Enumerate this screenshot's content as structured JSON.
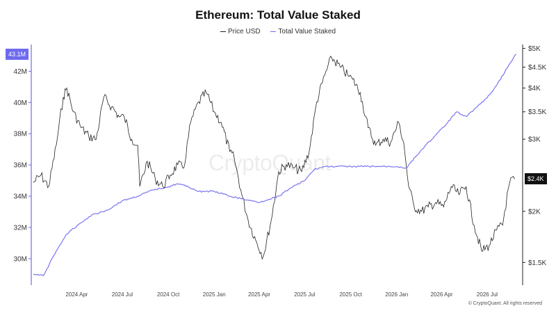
{
  "chart_data": {
    "type": "line",
    "title": "Ethereum: Total Value Staked",
    "legend_position": "top-center",
    "series": [
      {
        "name": "Price USD",
        "axis": "right",
        "color": "#222222",
        "x": [
          "2024-01-05",
          "2024-01-20",
          "2024-02-05",
          "2024-02-20",
          "2024-03-05",
          "2024-03-12",
          "2024-03-25",
          "2024-04-10",
          "2024-04-25",
          "2024-05-10",
          "2024-05-25",
          "2024-06-10",
          "2024-06-25",
          "2024-07-05",
          "2024-07-20",
          "2024-08-01",
          "2024-08-05",
          "2024-08-20",
          "2024-09-05",
          "2024-09-20",
          "2024-10-05",
          "2024-10-20",
          "2024-11-01",
          "2024-11-15",
          "2024-12-01",
          "2024-12-16",
          "2025-01-01",
          "2025-01-15",
          "2025-02-01",
          "2025-02-10",
          "2025-02-25",
          "2025-03-10",
          "2025-03-25",
          "2025-04-09",
          "2025-04-25",
          "2025-05-10",
          "2025-05-25",
          "2025-06-10",
          "2025-06-25",
          "2025-07-10",
          "2025-07-25",
          "2025-08-10",
          "2025-08-24",
          "2025-09-10",
          "2025-09-25",
          "2025-10-05",
          "2025-10-20",
          "2025-11-05",
          "2025-11-20",
          "2025-12-05",
          "2025-12-20",
          "2026-01-05",
          "2026-01-15",
          "2026-01-25",
          "2026-02-05",
          "2026-02-20",
          "2026-03-05",
          "2026-03-20",
          "2026-04-05",
          "2026-04-20",
          "2026-05-05",
          "2026-05-20",
          "2026-06-05",
          "2026-06-20",
          "2026-07-05",
          "2026-07-20",
          "2026-08-01",
          "2026-08-05",
          "2026-08-15",
          "2026-08-25"
        ],
        "values": [
          2350,
          2450,
          2300,
          2900,
          3800,
          4000,
          3500,
          3200,
          3050,
          3000,
          3800,
          3600,
          3400,
          3400,
          3000,
          2900,
          2300,
          2650,
          2400,
          2300,
          2450,
          2600,
          2550,
          3300,
          3700,
          3900,
          3500,
          3300,
          2800,
          2700,
          2200,
          1900,
          1700,
          1550,
          1900,
          2500,
          2600,
          2550,
          2500,
          2800,
          3700,
          4300,
          4750,
          4500,
          4300,
          4200,
          3900,
          3200,
          2900,
          3000,
          2950,
          3300,
          2950,
          2300,
          2050,
          2000,
          2050,
          2100,
          2050,
          2300,
          2200,
          2300,
          1850,
          1600,
          1650,
          1800,
          1850,
          2000,
          2350,
          2400
        ]
      },
      {
        "name": "Total Value Staked",
        "axis": "left",
        "color": "#6e6af0",
        "x": [
          "2024-01-05",
          "2024-01-25",
          "2024-02-15",
          "2024-03-10",
          "2024-04-05",
          "2024-05-01",
          "2024-06-01",
          "2024-07-01",
          "2024-08-01",
          "2024-09-01",
          "2024-10-01",
          "2024-10-20",
          "2024-11-10",
          "2024-12-01",
          "2025-01-01",
          "2025-02-01",
          "2025-03-01",
          "2025-04-01",
          "2025-04-20",
          "2025-05-10",
          "2025-06-01",
          "2025-07-01",
          "2025-07-20",
          "2025-08-10",
          "2025-09-01",
          "2025-10-01",
          "2025-11-01",
          "2025-12-01",
          "2026-01-01",
          "2026-01-20",
          "2026-02-10",
          "2026-03-01",
          "2026-03-20",
          "2026-04-10",
          "2026-05-01",
          "2026-05-20",
          "2026-06-10",
          "2026-07-01",
          "2026-07-20",
          "2026-08-10",
          "2026-08-28"
        ],
        "values": [
          29.0,
          28.9,
          30.2,
          31.5,
          32.2,
          32.8,
          33.1,
          33.7,
          34.0,
          34.4,
          34.6,
          34.8,
          34.6,
          34.3,
          34.3,
          34.0,
          33.8,
          33.6,
          33.8,
          34.0,
          34.5,
          35.0,
          35.7,
          35.9,
          35.9,
          35.9,
          35.9,
          35.9,
          35.9,
          35.8,
          36.6,
          37.3,
          37.9,
          38.6,
          39.4,
          39.1,
          39.7,
          40.3,
          41.1,
          42.2,
          43.1
        ]
      }
    ],
    "x_ticks": [
      "2024 Apr",
      "2024 Jul",
      "2024 Oct",
      "2025 Jan",
      "2025 Apr",
      "2025 Jul",
      "2025 Oct",
      "2026 Jan",
      "2026 Apr",
      "2026 Jul"
    ],
    "x_tick_dates": [
      "2024-04-01",
      "2024-07-01",
      "2024-10-01",
      "2025-01-01",
      "2025-04-01",
      "2025-07-01",
      "2025-10-01",
      "2026-01-01",
      "2026-04-01",
      "2026-07-01"
    ],
    "xlim": [
      "2024-01-01",
      "2026-09-10"
    ],
    "left_axis": {
      "ticks": [
        30,
        32,
        34,
        36,
        38,
        40,
        42
      ],
      "tick_labels": [
        "30M",
        "32M",
        "34M",
        "36M",
        "38M",
        "40M",
        "42M"
      ],
      "ylim": [
        28.3,
        43.8
      ],
      "current_value_label": "43.1M",
      "current_value": 43.1
    },
    "right_axis": {
      "scale": "log",
      "ticks": [
        1500,
        2000,
        3000,
        3500,
        4000,
        4500,
        5000
      ],
      "tick_labels": [
        "$1.5K",
        "$2K",
        "$3K",
        "$3.5K",
        "$4K",
        "$4.5K",
        "$5K"
      ],
      "ylim": [
        1320,
        5150
      ],
      "current_value_label": "$2.4K",
      "current_value": 2400
    },
    "grid": false
  },
  "watermark": "CryptoQuant",
  "credit": "© CryptoQuant. All rights reserved",
  "colors": {
    "staked": "#6e6af0",
    "price": "#222222",
    "price_badge_bg": "#111111"
  }
}
